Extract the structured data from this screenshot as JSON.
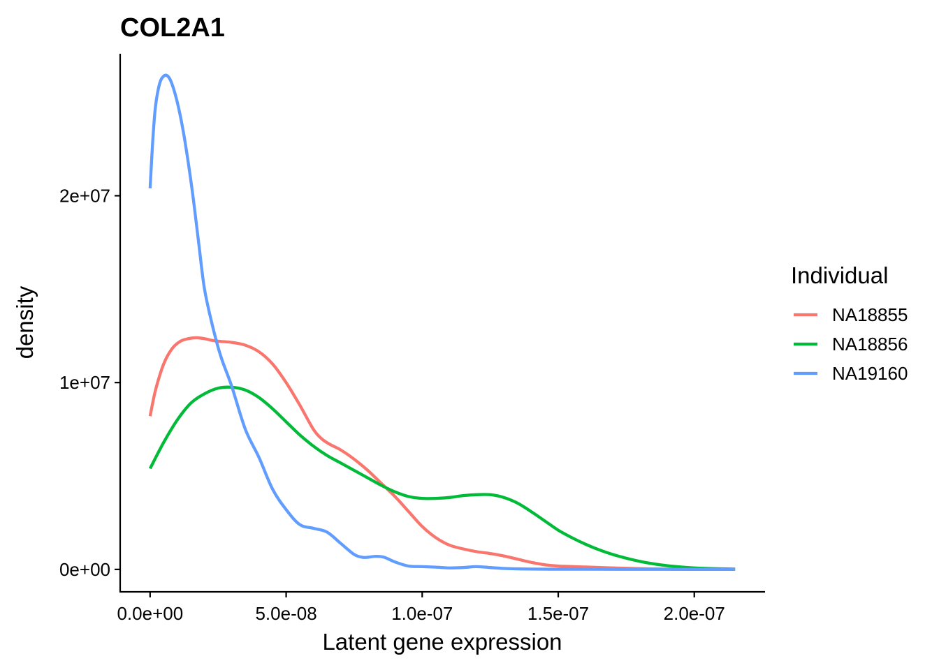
{
  "chart_data": {
    "type": "line",
    "title": "COL2A1",
    "xlabel": "Latent gene expression",
    "ylabel": "density",
    "xlim": [
      -1.1e-08,
      2.26e-07
    ],
    "ylim": [
      -1200000.0,
      27600000.0
    ],
    "x_ticks": [
      0,
      5e-08,
      1e-07,
      1.5e-07,
      2e-07
    ],
    "x_tick_labels": [
      "0.0e+00",
      "5.0e-08",
      "1.0e-07",
      "1.5e-07",
      "2.0e-07"
    ],
    "y_ticks": [
      0,
      10000000.0,
      20000000.0
    ],
    "y_tick_labels": [
      "0e+00",
      "1e+07",
      "2e+07"
    ],
    "grid": false,
    "legend": {
      "title": "Individual",
      "position": "right"
    },
    "series": [
      {
        "name": "NA18855",
        "color": "#F8766D",
        "x": [
          0,
          2e-09,
          5e-09,
          8e-09,
          1.1e-08,
          1.4e-08,
          1.7e-08,
          2e-08,
          2.3e-08,
          2.6e-08,
          3e-08,
          3.5e-08,
          4e-08,
          4.5e-08,
          5e-08,
          5.5e-08,
          6e-08,
          6.3e-08,
          6.6e-08,
          7e-08,
          7.5e-08,
          8e-08,
          8.5e-08,
          9e-08,
          9.5e-08,
          1e-07,
          1.05e-07,
          1.1e-07,
          1.15e-07,
          1.2e-07,
          1.25e-07,
          1.3e-07,
          1.35e-07,
          1.4e-07,
          1.45e-07,
          1.5e-07,
          1.6e-07,
          1.7e-07,
          1.8e-07,
          1.9e-07,
          2e-07,
          2.15e-07
        ],
        "y": [
          8200000.0,
          9600000.0,
          11000000.0,
          11800000.0,
          12200000.0,
          12350000.0,
          12400000.0,
          12350000.0,
          12250000.0,
          12200000.0,
          12150000.0,
          12000000.0,
          11650000.0,
          11000000.0,
          10000000.0,
          8800000.0,
          7500000.0,
          7000000.0,
          6700000.0,
          6400000.0,
          5900000.0,
          5300000.0,
          4600000.0,
          3900000.0,
          3100000.0,
          2300000.0,
          1700000.0,
          1300000.0,
          1100000.0,
          950000.0,
          850000.0,
          720000.0,
          550000.0,
          380000.0,
          250000.0,
          180000.0,
          130000.0,
          80000.0,
          40000.0,
          20000.0,
          15000.0,
          10000.0
        ]
      },
      {
        "name": "NA18856",
        "color": "#00BA38",
        "x": [
          0,
          5e-09,
          1e-08,
          1.5e-08,
          2e-08,
          2.5e-08,
          3e-08,
          3.5e-08,
          4e-08,
          4.5e-08,
          5e-08,
          5.5e-08,
          6e-08,
          6.5e-08,
          7e-08,
          7.5e-08,
          8e-08,
          8.5e-08,
          9e-08,
          9.5e-08,
          1e-07,
          1.05e-07,
          1.1e-07,
          1.15e-07,
          1.2e-07,
          1.25e-07,
          1.3e-07,
          1.35e-07,
          1.4e-07,
          1.45e-07,
          1.5e-07,
          1.55e-07,
          1.6e-07,
          1.65e-07,
          1.7e-07,
          1.75e-07,
          1.8e-07,
          1.85e-07,
          1.9e-07,
          1.95e-07,
          2e-07,
          2.05e-07,
          2.1e-07,
          2.15e-07
        ],
        "y": [
          5400000.0,
          6800000.0,
          8000000.0,
          8900000.0,
          9400000.0,
          9700000.0,
          9750000.0,
          9600000.0,
          9200000.0,
          8600000.0,
          7900000.0,
          7200000.0,
          6600000.0,
          6100000.0,
          5700000.0,
          5300000.0,
          4900000.0,
          4500000.0,
          4150000.0,
          3900000.0,
          3800000.0,
          3800000.0,
          3850000.0,
          3950000.0,
          4000000.0,
          4000000.0,
          3850000.0,
          3550000.0,
          3100000.0,
          2600000.0,
          2100000.0,
          1700000.0,
          1350000.0,
          1050000.0,
          800000.0,
          600000.0,
          430000.0,
          300000.0,
          200000.0,
          130000.0,
          80000.0,
          50000.0,
          30000.0,
          20000.0
        ]
      },
      {
        "name": "NA19160",
        "color": "#619CFF",
        "x": [
          0,
          1e-09,
          2e-09,
          3.5e-09,
          5e-09,
          6.5e-09,
          8e-09,
          1e-08,
          1.2e-08,
          1.4e-08,
          1.6e-08,
          1.8e-08,
          2e-08,
          2.3e-08,
          2.6e-08,
          3e-08,
          3.5e-08,
          4e-08,
          4.5e-08,
          5e-08,
          5.5e-08,
          6e-08,
          6.5e-08,
          7e-08,
          7.5e-08,
          7.8e-08,
          8e-08,
          8.3e-08,
          8.6e-08,
          9e-08,
          9.5e-08,
          1e-07,
          1.05e-07,
          1.1e-07,
          1.15e-07,
          1.2e-07,
          1.25e-07,
          1.3e-07,
          1.35e-07,
          1.4e-07,
          1.5e-07,
          1.6e-07,
          1.8e-07,
          2e-07,
          2.15e-07
        ],
        "y": [
          20400000.0,
          23000000.0,
          24800000.0,
          26000000.0,
          26400000.0,
          26400000.0,
          26000000.0,
          25000000.0,
          23600000.0,
          21800000.0,
          19700000.0,
          17300000.0,
          15000000.0,
          13000000.0,
          11400000.0,
          9800000.0,
          7500000.0,
          6000000.0,
          4300000.0,
          3200000.0,
          2400000.0,
          2200000.0,
          2000000.0,
          1400000.0,
          800000.0,
          650000.0,
          650000.0,
          700000.0,
          650000.0,
          400000.0,
          180000.0,
          150000.0,
          120000.0,
          80000.0,
          100000.0,
          150000.0,
          100000.0,
          50000.0,
          30000.0,
          20000.0,
          10000.0,
          10000.0,
          5000.0,
          3000.0,
          2000.0
        ]
      }
    ]
  }
}
